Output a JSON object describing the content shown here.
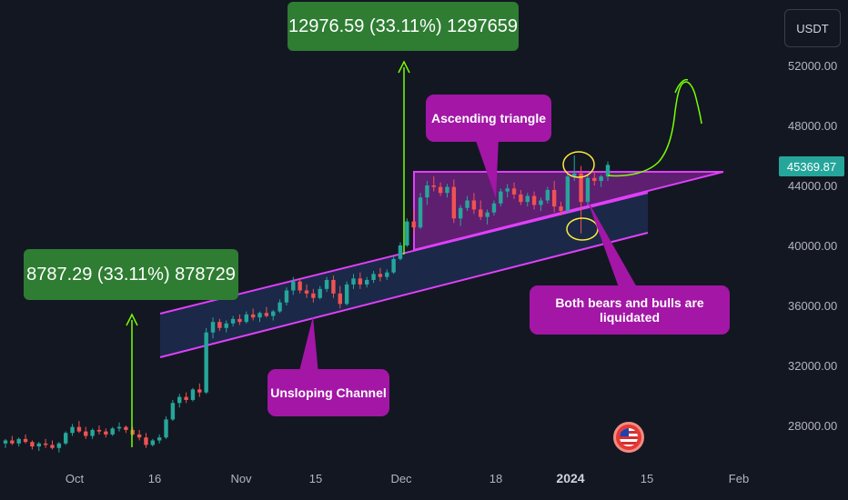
{
  "currency": "USDT",
  "last_price": "45369.87",
  "chart_data": {
    "type": "candlestick",
    "title": "",
    "y_ticks": [
      "52000.00",
      "48000.00",
      "44000.00",
      "40000.00",
      "36000.00",
      "32000.00",
      "28000.00"
    ],
    "y_tick_values": [
      52000,
      48000,
      44000,
      40000,
      36000,
      32000,
      28000
    ],
    "x_ticks": [
      "Oct",
      "16",
      "Nov",
      "15",
      "Dec",
      "18",
      "2024",
      "15",
      "Feb"
    ],
    "ylim": [
      25000,
      55000
    ],
    "grid": false,
    "candles": [
      [
        26800,
        27100,
        26500,
        27000
      ],
      [
        27000,
        27300,
        26700,
        26800
      ],
      [
        26800,
        27200,
        26600,
        27100
      ],
      [
        27100,
        27400,
        26800,
        26900
      ],
      [
        26900,
        27000,
        26400,
        26600
      ],
      [
        26600,
        26900,
        26300,
        26800
      ],
      [
        26800,
        27100,
        26500,
        26700
      ],
      [
        26700,
        27000,
        26400,
        26500
      ],
      [
        26500,
        26900,
        26200,
        26800
      ],
      [
        26800,
        27600,
        26700,
        27500
      ],
      [
        27500,
        28100,
        27300,
        27900
      ],
      [
        27900,
        28300,
        27500,
        27600
      ],
      [
        27600,
        27900,
        27100,
        27300
      ],
      [
        27300,
        27800,
        27100,
        27700
      ],
      [
        27700,
        28000,
        27400,
        27600
      ],
      [
        27600,
        27800,
        27200,
        27400
      ],
      [
        27400,
        27900,
        27300,
        27800
      ],
      [
        27800,
        28200,
        27600,
        27900
      ],
      [
        27900,
        28000,
        27500,
        27700
      ],
      [
        27700,
        27900,
        27300,
        27400
      ],
      [
        27400,
        27700,
        27000,
        27200
      ],
      [
        27200,
        27500,
        26500,
        26700
      ],
      [
        26700,
        27100,
        26600,
        27000
      ],
      [
        27000,
        27400,
        26800,
        27200
      ],
      [
        27200,
        28600,
        27100,
        28400
      ],
      [
        28400,
        29700,
        28300,
        29500
      ],
      [
        29500,
        30100,
        29200,
        29900
      ],
      [
        29900,
        30200,
        29500,
        29700
      ],
      [
        29700,
        30500,
        29600,
        30400
      ],
      [
        30400,
        30800,
        29900,
        30200
      ],
      [
        30200,
        34500,
        30100,
        34200
      ],
      [
        34200,
        35200,
        33800,
        34900
      ],
      [
        34900,
        35100,
        34300,
        34500
      ],
      [
        34500,
        35000,
        34200,
        34800
      ],
      [
        34800,
        35300,
        34600,
        35100
      ],
      [
        35100,
        35400,
        34700,
        34900
      ],
      [
        34900,
        35600,
        34800,
        35400
      ],
      [
        35400,
        35800,
        35000,
        35200
      ],
      [
        35200,
        35600,
        34900,
        35500
      ],
      [
        35500,
        35900,
        35200,
        35300
      ],
      [
        35300,
        35700,
        35000,
        35600
      ],
      [
        35600,
        36400,
        35500,
        36200
      ],
      [
        36200,
        37200,
        36000,
        37000
      ],
      [
        37000,
        37900,
        36700,
        37600
      ],
      [
        37600,
        37800,
        36800,
        37000
      ],
      [
        37000,
        37400,
        36500,
        36800
      ],
      [
        36800,
        37100,
        36200,
        36500
      ],
      [
        36500,
        37300,
        36400,
        37100
      ],
      [
        37100,
        37900,
        36900,
        37700
      ],
      [
        37700,
        38000,
        36500,
        36800
      ],
      [
        36800,
        37300,
        35800,
        36100
      ],
      [
        36100,
        37600,
        36000,
        37400
      ],
      [
        37400,
        38100,
        37100,
        37800
      ],
      [
        37800,
        38200,
        37100,
        37400
      ],
      [
        37400,
        37900,
        37200,
        37700
      ],
      [
        37700,
        38300,
        37500,
        38100
      ],
      [
        38100,
        38500,
        37600,
        37900
      ],
      [
        37900,
        38400,
        37700,
        38200
      ],
      [
        38200,
        39300,
        38100,
        39100
      ],
      [
        39100,
        40200,
        39000,
        40000
      ],
      [
        40000,
        41800,
        39900,
        41600
      ],
      [
        41600,
        42400,
        40800,
        41200
      ],
      [
        41200,
        43500,
        41100,
        43200
      ],
      [
        43200,
        44300,
        42700,
        44000
      ],
      [
        44000,
        44600,
        43600,
        43900
      ],
      [
        43900,
        44200,
        43300,
        43500
      ],
      [
        43500,
        44100,
        43200,
        43900
      ],
      [
        43900,
        44400,
        41500,
        41800
      ],
      [
        41800,
        42700,
        41300,
        42500
      ],
      [
        42500,
        43300,
        42300,
        43000
      ],
      [
        43000,
        43500,
        42100,
        42400
      ],
      [
        42400,
        43000,
        41700,
        41900
      ],
      [
        41900,
        42400,
        41400,
        42200
      ],
      [
        42200,
        43000,
        42000,
        42800
      ],
      [
        42800,
        43800,
        42600,
        43600
      ],
      [
        43600,
        44100,
        43200,
        43800
      ],
      [
        43800,
        44200,
        43100,
        43400
      ],
      [
        43400,
        43700,
        42700,
        42900
      ],
      [
        42900,
        43500,
        42600,
        43300
      ],
      [
        43300,
        43600,
        42400,
        42700
      ],
      [
        42700,
        43200,
        42300,
        43000
      ],
      [
        43000,
        43900,
        42800,
        43700
      ],
      [
        43700,
        44300,
        42200,
        42600
      ],
      [
        42600,
        42900,
        42000,
        42300
      ],
      [
        42300,
        44800,
        42200,
        44600
      ],
      [
        44600,
        46000,
        44300,
        44800
      ],
      [
        44800,
        45300,
        40800,
        42900
      ],
      [
        42900,
        44700,
        42700,
        44500
      ],
      [
        44500,
        44900,
        44000,
        44300
      ],
      [
        44300,
        44700,
        43900,
        44600
      ],
      [
        44600,
        45600,
        44300,
        45370
      ]
    ]
  },
  "annotations": {
    "measure_upper": "12976.59 (33.11%) 1297659",
    "measure_lower": "8787.29 (33.11%) 878729",
    "ascending_triangle": "Ascending triangle",
    "upsloping_channel": "Unsloping Channel",
    "liquidated": "Both bears and bulls are liquidated"
  },
  "colors": {
    "up": "#26a69a",
    "down": "#ef5350",
    "background": "#131722",
    "pattern_line": "#e040fb",
    "callout_magenta": "#a316a6",
    "callout_green": "#2e7d32",
    "arrow_green": "#76ff03",
    "ellipse_yellow": "#ffeb3b"
  }
}
